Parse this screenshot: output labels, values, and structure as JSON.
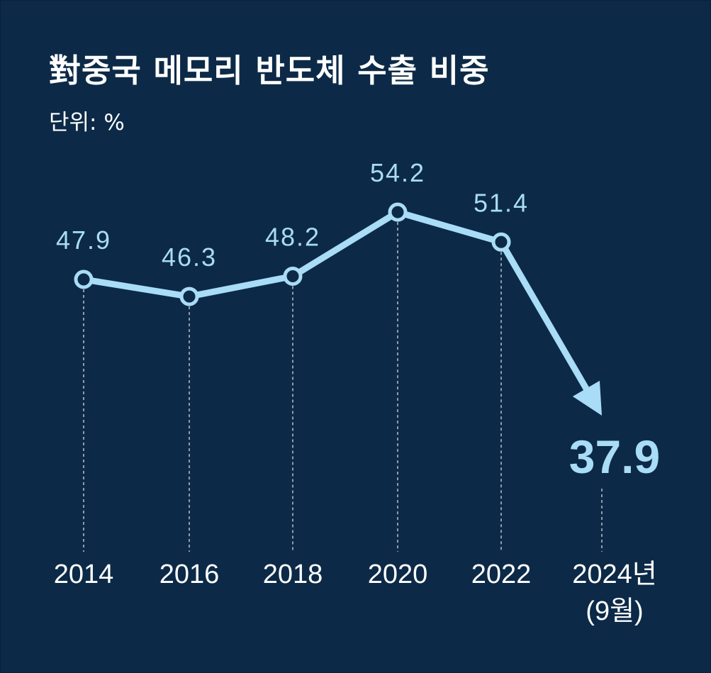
{
  "title": "對중국 메모리 반도체 수출 비중",
  "unit_label": "단위: %",
  "colors": {
    "background": "#0c2a47",
    "line": "#a9dcf6",
    "highlight": "#a9dcf6",
    "text": "#ffffff"
  },
  "chart_data": {
    "type": "line",
    "title": "對중국 메모리 반도체 수출 비중",
    "ylabel": "단위: %",
    "categories": [
      "2014",
      "2016",
      "2018",
      "2020",
      "2022",
      "2024년 (9월)"
    ],
    "x_labels": [
      [
        "2014"
      ],
      [
        "2016"
      ],
      [
        "2018"
      ],
      [
        "2020"
      ],
      [
        "2022"
      ],
      [
        "2024년",
        "(9월)"
      ]
    ],
    "values": [
      47.9,
      46.3,
      48.2,
      54.2,
      51.4,
      37.9
    ],
    "value_labels": [
      "47.9",
      "46.3",
      "48.2",
      "54.2",
      "51.4",
      "37.9"
    ],
    "highlight_last": true,
    "last_segment_arrow": true,
    "grid": false
  }
}
